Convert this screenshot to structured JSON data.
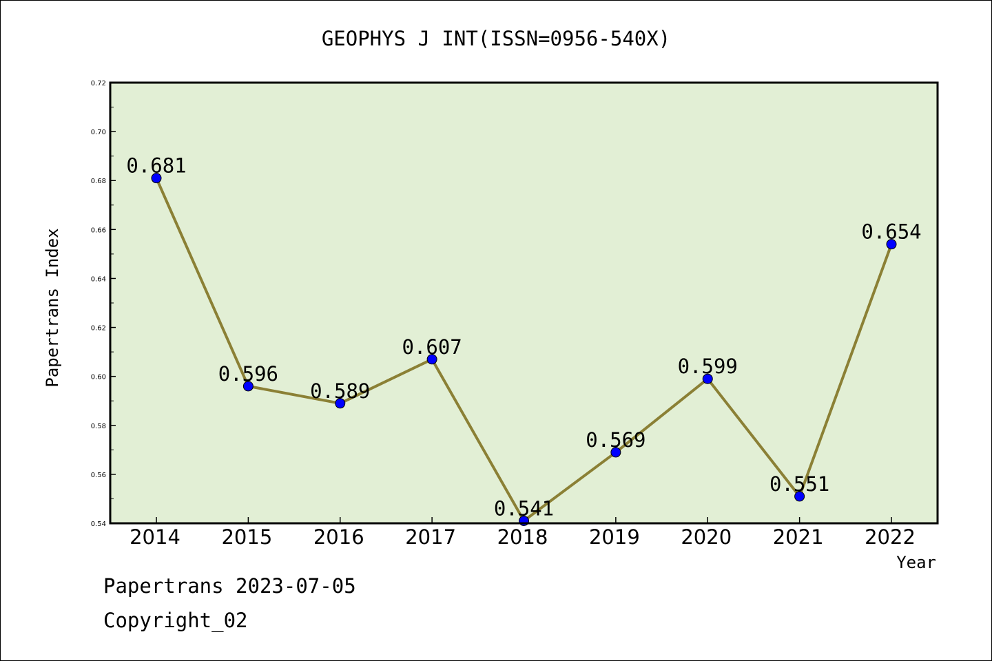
{
  "chart_data": {
    "type": "line",
    "title": "GEOPHYS J INT(ISSN=0956-540X)",
    "xlabel": "Year",
    "ylabel": "Papertrans Index",
    "categories": [
      "2014",
      "2015",
      "2016",
      "2017",
      "2018",
      "2019",
      "2020",
      "2021",
      "2022"
    ],
    "series": [
      {
        "values": [
          0.681,
          0.596,
          0.589,
          0.607,
          0.541,
          0.569,
          0.599,
          0.551,
          0.654
        ],
        "data_labels": [
          "0.681",
          "0.596",
          "0.589",
          "0.607",
          "0.541",
          "0.569",
          "0.599",
          "0.551",
          "0.654"
        ]
      }
    ],
    "ylim": [
      0.54,
      0.72
    ],
    "yticks": [
      "0.54",
      "0.56",
      "0.58",
      "0.60",
      "0.62",
      "0.64",
      "0.66",
      "0.68",
      "0.70",
      "0.72"
    ],
    "grid": false,
    "colors": {
      "plot_background": "#e2efd5",
      "line": "#8b8035",
      "marker": "#0000ff"
    }
  },
  "footer": {
    "date_line": "Papertrans 2023-07-05",
    "copyright": "Copyright_02"
  }
}
